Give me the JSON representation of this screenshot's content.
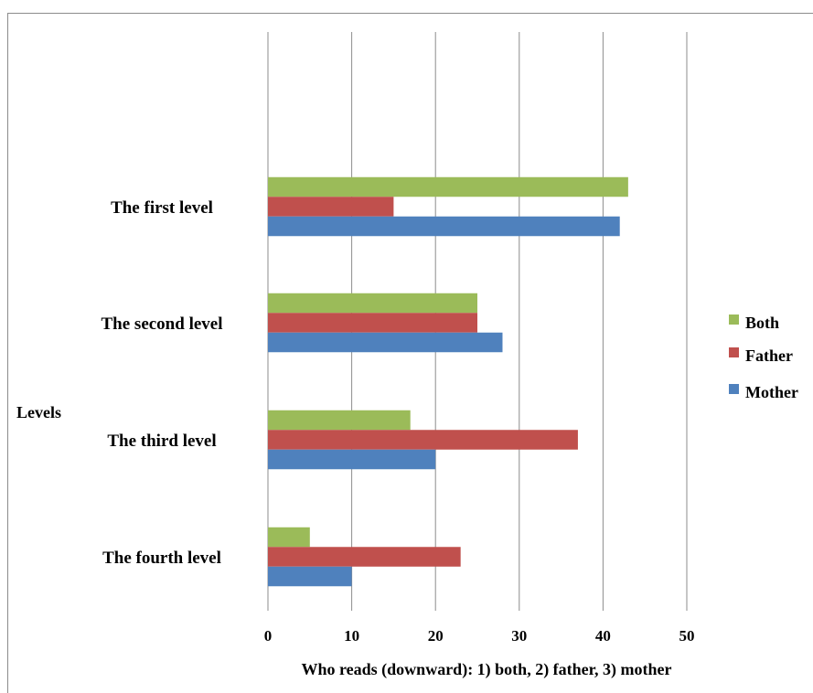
{
  "chart_data": {
    "type": "bar",
    "orientation": "horizontal",
    "categories": [
      "The first level",
      "The second level",
      "The third level",
      "The fourth level"
    ],
    "series": [
      {
        "name": "Both",
        "color": "#9BBB59",
        "values": [
          43,
          25,
          17,
          5
        ]
      },
      {
        "name": "Father",
        "color": "#C0504D",
        "values": [
          15,
          25,
          37,
          23
        ]
      },
      {
        "name": "Mother",
        "color": "#4F81BD",
        "values": [
          42,
          28,
          20,
          10
        ]
      }
    ],
    "xlabel": "Who reads (downward): 1) both, 2) father, 3) mother",
    "ylabel": "Levels",
    "xlim": [
      0,
      50
    ],
    "xticks": [
      0,
      10,
      20,
      30,
      40,
      50
    ],
    "grid": "vertical",
    "legend_position": "right",
    "legend_order": [
      "Both",
      "Father",
      "Mother"
    ]
  }
}
